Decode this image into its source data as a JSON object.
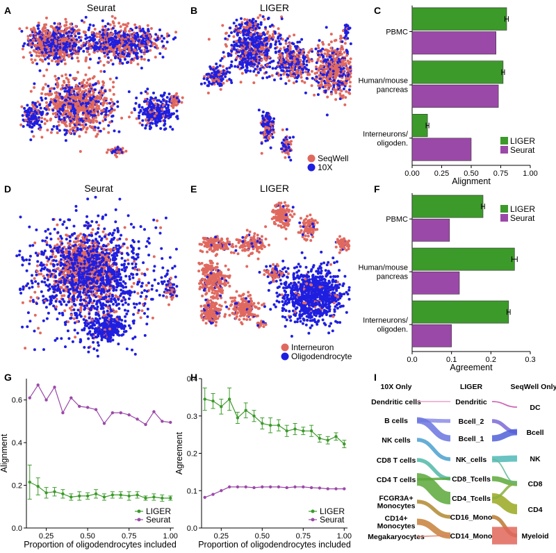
{
  "panel_labels": [
    "A",
    "B",
    "C",
    "D",
    "E",
    "F",
    "G",
    "H",
    "I"
  ],
  "colors": {
    "salmon": "#e0695f",
    "blue": "#1f1fe0",
    "liger": "#3c9a2a",
    "seurat": "#9b49a8"
  },
  "scatter_panels": [
    {
      "id": "A",
      "title": "Seurat",
      "seed": 11,
      "blobs": [
        [
          0.22,
          0.18,
          0.18,
          0.12,
          700,
          0.45
        ],
        [
          0.62,
          0.18,
          0.27,
          0.12,
          650,
          0.55
        ],
        [
          0.35,
          0.58,
          0.25,
          0.2,
          800,
          0.35
        ],
        [
          0.84,
          0.62,
          0.12,
          0.12,
          260,
          0.85
        ],
        [
          0.08,
          0.65,
          0.06,
          0.1,
          120,
          0.8
        ],
        [
          0.95,
          0.55,
          0.04,
          0.04,
          60,
          0.2
        ],
        [
          0.6,
          0.88,
          0.06,
          0.03,
          40,
          0.3
        ]
      ],
      "legend": []
    },
    {
      "id": "B",
      "title": "LIGER",
      "seed": 23,
      "blobs": [
        [
          0.35,
          0.2,
          0.17,
          0.2,
          650,
          0.65
        ],
        [
          0.62,
          0.3,
          0.13,
          0.15,
          300,
          0.5
        ],
        [
          0.9,
          0.35,
          0.15,
          0.2,
          500,
          0.35
        ],
        [
          0.12,
          0.4,
          0.08,
          0.08,
          120,
          0.6
        ],
        [
          0.45,
          0.72,
          0.05,
          0.12,
          130,
          0.6
        ],
        [
          0.58,
          0.85,
          0.04,
          0.08,
          60,
          0.5
        ],
        [
          0.97,
          0.1,
          0.02,
          0.05,
          25,
          0.8
        ]
      ],
      "legend": [
        "SeqWell",
        "10X"
      ]
    },
    {
      "id": "D",
      "title": "Seurat",
      "seed": 37,
      "blobs": [
        [
          0.42,
          0.45,
          0.2,
          0.2,
          900,
          0.1
        ],
        [
          0.45,
          0.5,
          0.42,
          0.38,
          1200,
          0.85
        ],
        [
          0.55,
          0.82,
          0.12,
          0.08,
          260,
          0.9
        ],
        [
          0.93,
          0.58,
          0.05,
          0.06,
          60,
          0.5
        ]
      ],
      "legend": []
    },
    {
      "id": "E",
      "title": "LIGER",
      "seed": 51,
      "blobs": [
        [
          0.12,
          0.3,
          0.12,
          0.05,
          140,
          0.1
        ],
        [
          0.55,
          0.12,
          0.08,
          0.08,
          160,
          0.05
        ],
        [
          0.35,
          0.3,
          0.1,
          0.08,
          120,
          0.1
        ],
        [
          0.72,
          0.2,
          0.06,
          0.08,
          90,
          0.1
        ],
        [
          0.95,
          0.3,
          0.05,
          0.05,
          60,
          0.1
        ],
        [
          0.1,
          0.52,
          0.1,
          0.1,
          250,
          0.1
        ],
        [
          0.08,
          0.72,
          0.07,
          0.07,
          170,
          0.1
        ],
        [
          0.3,
          0.7,
          0.1,
          0.08,
          200,
          0.1
        ],
        [
          0.75,
          0.62,
          0.22,
          0.18,
          900,
          0.95
        ],
        [
          0.5,
          0.48,
          0.07,
          0.05,
          80,
          0.4
        ],
        [
          0.42,
          0.8,
          0.03,
          0.04,
          20,
          0.3
        ]
      ],
      "legend": [
        "Interneuron",
        "Oligodendrocyte"
      ]
    }
  ],
  "chart_data": [
    {
      "id": "C",
      "type": "bar",
      "orientation": "horizontal",
      "categories": [
        "PBMC",
        "Human/mouse\npancreas",
        "Interneurons/\noligoden."
      ],
      "series": [
        {
          "name": "LIGER",
          "values": [
            0.8,
            0.77,
            0.13
          ],
          "err": [
            0.015,
            0.012,
            0.012
          ]
        },
        {
          "name": "Seurat",
          "values": [
            0.71,
            0.73,
            0.5
          ]
        }
      ],
      "xlabel": "Alignment",
      "xlim": [
        0,
        1
      ],
      "ticks": [
        "0.00",
        "0.25",
        "0.50",
        "0.75",
        "1.00"
      ],
      "tick_values": [
        0,
        0.25,
        0.5,
        0.75,
        1
      ]
    },
    {
      "id": "F",
      "type": "bar",
      "orientation": "horizontal",
      "categories": [
        "PBMC",
        "Human/mouse\npancreas",
        "Interneurons/\noligoden."
      ],
      "series": [
        {
          "name": "LIGER",
          "values": [
            0.18,
            0.26,
            0.245
          ],
          "err": [
            0.004,
            0.007,
            0.004
          ]
        },
        {
          "name": "Seurat",
          "values": [
            0.095,
            0.12,
            0.1
          ]
        }
      ],
      "xlabel": "Agreement",
      "xlim": [
        0,
        0.3
      ],
      "ticks": [
        "0.0",
        "0.1",
        "0.2",
        "0.3"
      ],
      "tick_values": [
        0,
        0.1,
        0.2,
        0.3
      ]
    },
    {
      "id": "G",
      "type": "line",
      "x": [
        0.15,
        0.2,
        0.25,
        0.3,
        0.35,
        0.4,
        0.45,
        0.5,
        0.55,
        0.6,
        0.65,
        0.7,
        0.75,
        0.8,
        0.85,
        0.9,
        0.95,
        1.0
      ],
      "series": [
        {
          "name": "LIGER",
          "values": [
            0.215,
            0.195,
            0.165,
            0.17,
            0.16,
            0.145,
            0.15,
            0.15,
            0.16,
            0.145,
            0.155,
            0.155,
            0.15,
            0.155,
            0.14,
            0.145,
            0.14,
            0.14
          ],
          "err": [
            0.08,
            0.04,
            0.025,
            0.02,
            0.02,
            0.015,
            0.02,
            0.015,
            0.02,
            0.015,
            0.015,
            0.015,
            0.02,
            0.015,
            0.01,
            0.015,
            0.015,
            0.01
          ]
        },
        {
          "name": "Seurat",
          "values": [
            0.61,
            0.67,
            0.6,
            0.66,
            0.54,
            0.61,
            0.57,
            0.565,
            0.555,
            0.49,
            0.54,
            0.54,
            0.53,
            0.51,
            0.485,
            0.545,
            0.5,
            0.495
          ]
        }
      ],
      "xlabel": "Proportion of oligodendrocytes included",
      "ylabel": "Alignment",
      "ylim": [
        0,
        0.7
      ],
      "yticks": [
        "0.0",
        "0.2",
        "0.4",
        "0.6"
      ],
      "ytick_values": [
        0,
        0.2,
        0.4,
        0.6
      ],
      "xlim": [
        0.13,
        1.02
      ],
      "xticks": [
        "0.25",
        "0.50",
        "0.75",
        "1.00"
      ],
      "xtick_values": [
        0.25,
        0.5,
        0.75,
        1.0
      ]
    },
    {
      "id": "H",
      "type": "line",
      "x": [
        0.15,
        0.2,
        0.25,
        0.3,
        0.35,
        0.4,
        0.45,
        0.5,
        0.55,
        0.6,
        0.65,
        0.7,
        0.75,
        0.8,
        0.85,
        0.9,
        0.95,
        1.0
      ],
      "series": [
        {
          "name": "LIGER",
          "values": [
            0.345,
            0.34,
            0.325,
            0.345,
            0.295,
            0.315,
            0.3,
            0.28,
            0.275,
            0.275,
            0.26,
            0.265,
            0.26,
            0.26,
            0.24,
            0.235,
            0.245,
            0.225
          ],
          "err": [
            0.03,
            0.02,
            0.02,
            0.03,
            0.015,
            0.02,
            0.015,
            0.015,
            0.02,
            0.015,
            0.015,
            0.015,
            0.01,
            0.015,
            0.01,
            0.01,
            0.01,
            0.01
          ]
        },
        {
          "name": "Seurat",
          "values": [
            0.082,
            0.09,
            0.1,
            0.11,
            0.11,
            0.11,
            0.108,
            0.11,
            0.11,
            0.11,
            0.108,
            0.11,
            0.11,
            0.108,
            0.107,
            0.105,
            0.105,
            0.105
          ]
        }
      ],
      "xlabel": "Proportion of oligodendrocytes included",
      "ylabel": "Agreement",
      "ylim": [
        0,
        0.4
      ],
      "yticks": [
        "0.0",
        "0.1",
        "0.2",
        "0.3",
        "0.4"
      ],
      "ytick_values": [
        0,
        0.1,
        0.2,
        0.3,
        0.4
      ],
      "xlim": [
        0.13,
        1.02
      ],
      "xticks": [
        "0.25",
        "0.50",
        "0.75",
        "1.00"
      ],
      "xtick_values": [
        0.25,
        0.5,
        0.75,
        1.0
      ]
    }
  ],
  "sankey": {
    "headers": [
      "10X Only",
      "LIGER",
      "SeqWell Only"
    ],
    "left": [
      "Dendritic cells",
      "B cells",
      "NK cells",
      "CD8 T cells",
      "CD4 T cells",
      "FCGR3A+\nMonocytes",
      "CD14+\nMonocytes",
      "Megakaryocytes"
    ],
    "middle": [
      "Dendritic",
      "Bcell_2",
      "Bcell_1",
      "NK_cells",
      "CD8_Tcells",
      "CD4_Tcells",
      "CD16_Mono",
      "CD14_Mono"
    ],
    "right": [
      "DC",
      "Bcell",
      "NK",
      "CD8",
      "CD4",
      "Myeloid"
    ],
    "flows_left": [
      [
        0,
        0,
        1,
        "#e7a1c5"
      ],
      [
        1,
        1,
        3,
        "#8b8ce8"
      ],
      [
        1,
        2,
        5,
        "#6a76e0"
      ],
      [
        2,
        3,
        3,
        "#4aa0cf"
      ],
      [
        3,
        4,
        3,
        "#50b8a8"
      ],
      [
        4,
        5,
        10,
        "#5aa83a"
      ],
      [
        4,
        4,
        2,
        "#5aa83a"
      ],
      [
        5,
        6,
        3,
        "#b08a30"
      ],
      [
        6,
        7,
        5,
        "#c7803a"
      ],
      [
        7,
        7,
        1,
        "#e08070"
      ]
    ],
    "flows_right": [
      [
        0,
        0,
        1,
        "#c84fa8"
      ],
      [
        1,
        1,
        3,
        "#7b6ad8"
      ],
      [
        2,
        1,
        5,
        "#5060d8"
      ],
      [
        3,
        2,
        5,
        "#50b8b8"
      ],
      [
        4,
        3,
        4,
        "#5aa83a"
      ],
      [
        5,
        4,
        8,
        "#9aa820"
      ],
      [
        5,
        3,
        2,
        "#8ab040"
      ],
      [
        6,
        5,
        3,
        "#b87a30"
      ],
      [
        7,
        5,
        14,
        "#e0665a"
      ],
      [
        3,
        3,
        1,
        "#60b890"
      ]
    ]
  }
}
